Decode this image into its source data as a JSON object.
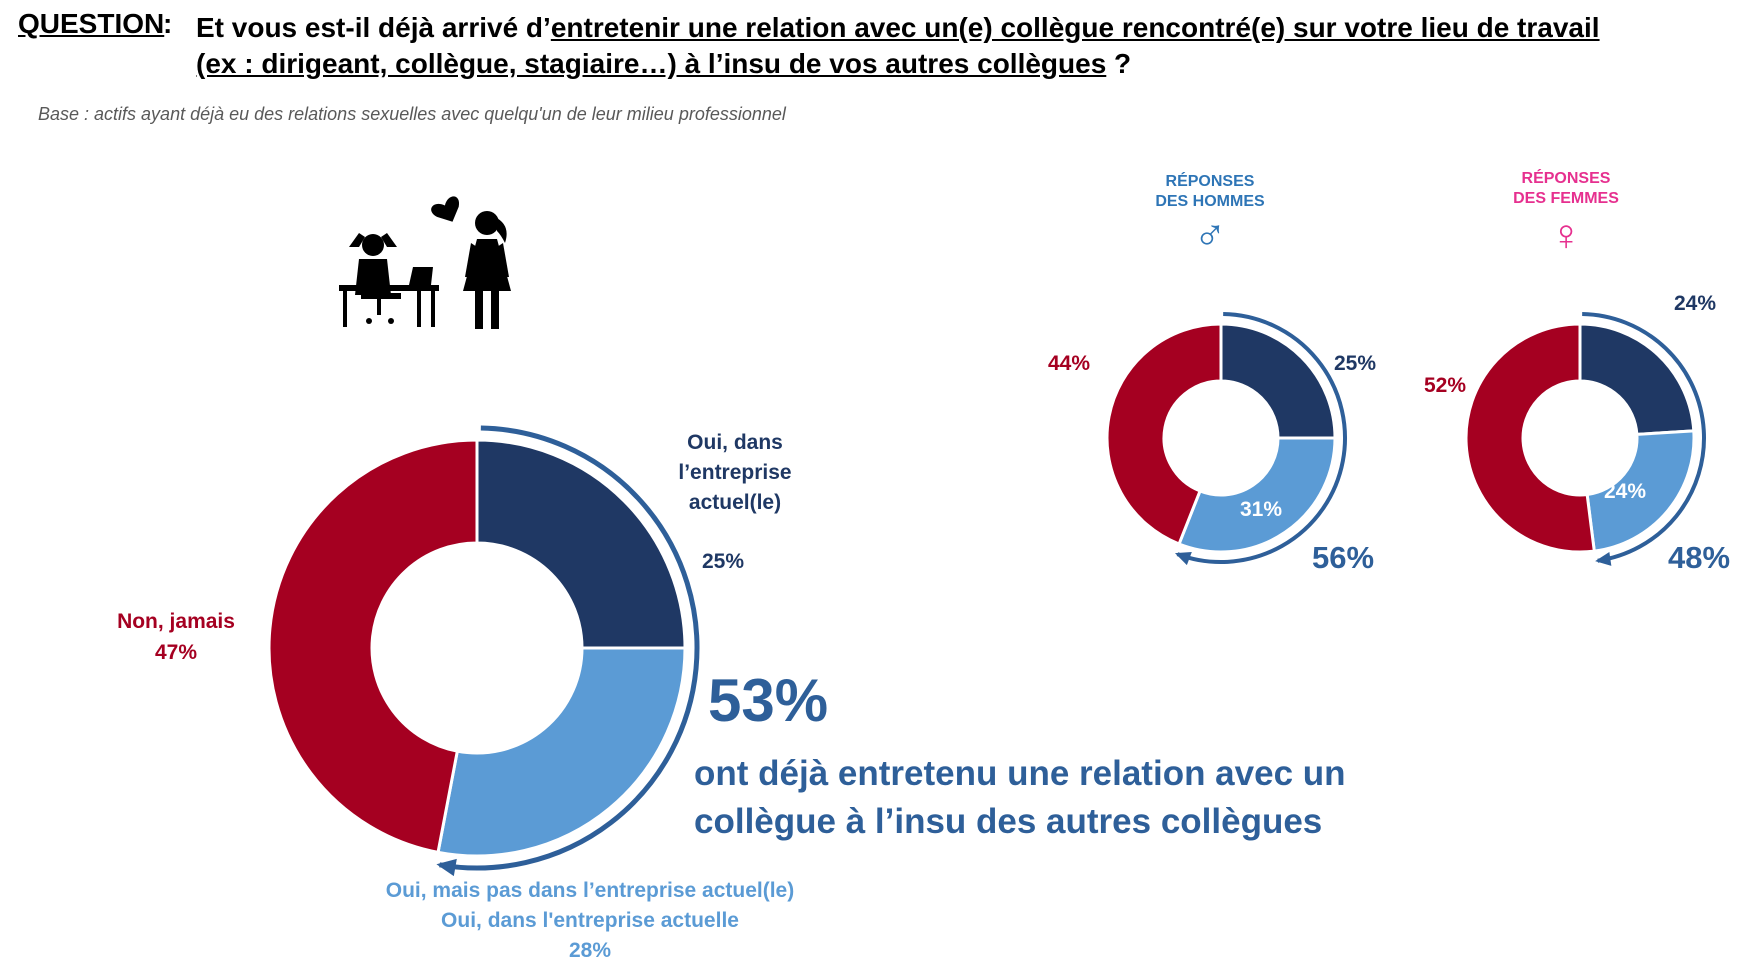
{
  "question": {
    "label": "QUESTION",
    "colon": ":",
    "line1_prefix": "Et vous est-il déjà arrivé d’",
    "line1_underlined": "entretenir une relation avec un(e) collègue rencontré(e) sur votre lieu de travail",
    "line2_underlined": "(ex : dirigeant, collègue, stagiaire…) à l’insu de vos autres collègues",
    "line2_suffix": " ?"
  },
  "base_note": "Base : actifs ayant déjà eu des relations sexuelles avec quelqu'un de leur milieu professionnel",
  "illustration_icon": "office-couple-heart-icon",
  "colors": {
    "dark_blue": "#1f3864",
    "light_blue": "#5b9bd5",
    "red": "#a50021",
    "arc": "#2e5f99",
    "male": "#2e75b6",
    "female": "#e6308f"
  },
  "main_labels": {
    "oui_dans_line1": "Oui, dans",
    "oui_dans_line2": "l’entreprise",
    "oui_dans_line3": "actuel(le)",
    "oui_dans_value": "25%",
    "non_jamais": "Non, jamais",
    "non_jamais_value": "47%",
    "oui_pas_line1": "Oui, mais pas dans l’entreprise actuel(le)",
    "oui_pas_line2": "Oui, dans l'entreprise actuelle",
    "oui_pas_value": "28%",
    "total_value": "53%",
    "total_text_line1": "ont déjà entretenu une relation avec un",
    "total_text_line2": "collègue à l’insu des autres collègues"
  },
  "men": {
    "header_line1": "RÉPONSES",
    "header_line2": "DES HOMMES",
    "symbol": "♂",
    "dark_value": "25%",
    "light_value": "31%",
    "red_value": "44%",
    "total_value": "56%"
  },
  "women": {
    "header_line1": "RÉPONSES",
    "header_line2": "DES FEMMES",
    "symbol": "♀",
    "dark_value": "24%",
    "light_value": "24%",
    "red_value": "52%",
    "total_value": "48%"
  },
  "chart_data": [
    {
      "type": "pie",
      "subtype": "donut",
      "categories": [
        "Oui, dans l’entreprise actuel(le)",
        "Oui, mais pas dans l’entreprise actuel(le)",
        "Non, jamais"
      ],
      "values": [
        25,
        28,
        47
      ],
      "unit": "%",
      "colors": [
        "#1f3864",
        "#5b9bd5",
        "#a50021"
      ],
      "total_oui": 53
    },
    {
      "type": "pie",
      "subtype": "donut",
      "title": "RÉPONSES DES HOMMES",
      "categories": [
        "Oui, dans l’entreprise actuel(le)",
        "Oui, mais pas dans l’entreprise actuel(le)",
        "Non, jamais"
      ],
      "values": [
        25,
        31,
        44
      ],
      "unit": "%",
      "colors": [
        "#1f3864",
        "#5b9bd5",
        "#a50021"
      ],
      "total_oui": 56
    },
    {
      "type": "pie",
      "subtype": "donut",
      "title": "RÉPONSES DES FEMMES",
      "categories": [
        "Oui, dans l’entreprise actuel(le)",
        "Oui, mais pas dans l’entreprise actuel(le)",
        "Non, jamais"
      ],
      "values": [
        24,
        24,
        52
      ],
      "unit": "%",
      "colors": [
        "#1f3864",
        "#5b9bd5",
        "#a50021"
      ],
      "total_oui": 48
    }
  ]
}
